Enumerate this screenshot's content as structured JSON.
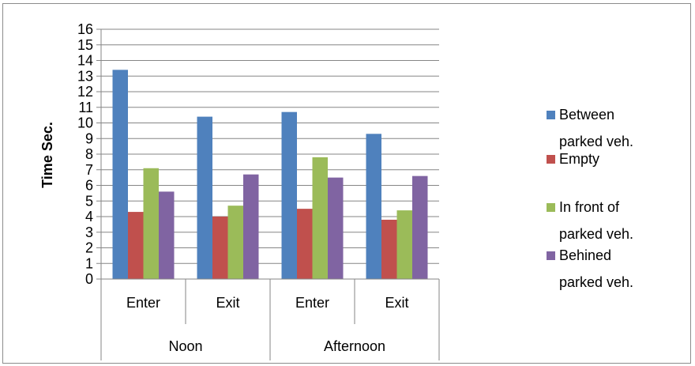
{
  "chart_data": {
    "type": "bar",
    "title": "",
    "xlabel": "",
    "ylabel": "Time Sec.",
    "ylim": [
      0,
      16
    ],
    "yticks": [
      0,
      1,
      2,
      3,
      4,
      5,
      6,
      7,
      8,
      9,
      10,
      11,
      12,
      13,
      14,
      15,
      16
    ],
    "grid": true,
    "legend_position": "right",
    "categories": [
      "Enter",
      "Exit",
      "Enter",
      "Exit"
    ],
    "groups": [
      {
        "label": "Noon",
        "categories": [
          "Enter",
          "Exit"
        ]
      },
      {
        "label": "Afternoon",
        "categories": [
          "Enter",
          "Exit"
        ]
      }
    ],
    "series": [
      {
        "name": "Between parked veh.",
        "legend_lines": [
          "Between",
          "parked veh."
        ],
        "color": "#4f81bd",
        "values": [
          13.4,
          10.4,
          10.7,
          9.3
        ]
      },
      {
        "name": "Empty",
        "legend_lines": [
          "Empty"
        ],
        "color": "#c0504d",
        "values": [
          4.3,
          4.0,
          4.5,
          3.8
        ]
      },
      {
        "name": "In front of parked veh.",
        "legend_lines": [
          "In front of",
          "parked veh."
        ],
        "color": "#9bbb59",
        "values": [
          7.1,
          4.7,
          7.8,
          4.4
        ]
      },
      {
        "name": "Behined parked veh.",
        "legend_lines": [
          "Behined",
          "parked veh."
        ],
        "color": "#8064a2",
        "values": [
          5.6,
          6.7,
          6.5,
          6.6
        ]
      }
    ]
  }
}
